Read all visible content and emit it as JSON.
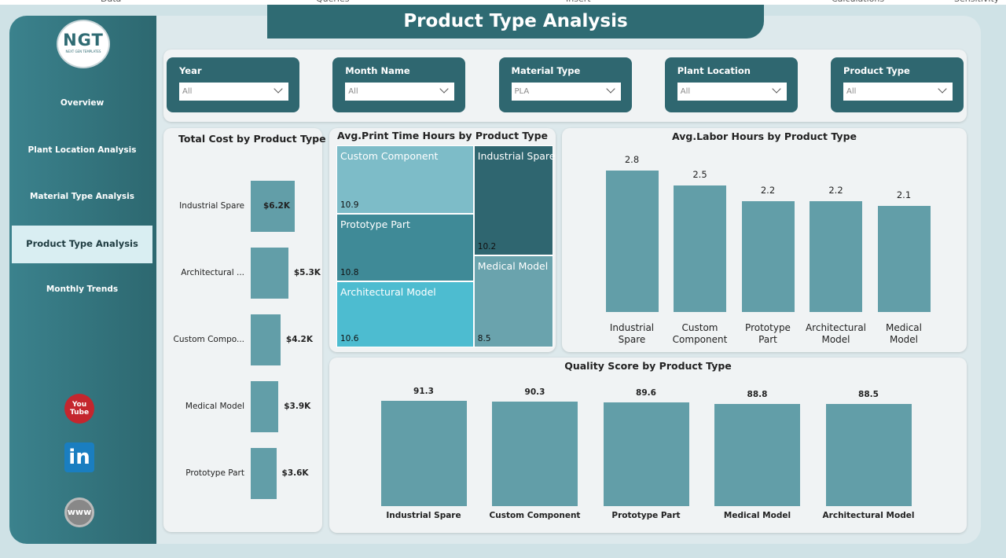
{
  "ribbon": [
    "Data",
    "Queries",
    "Insert",
    "Calculations",
    "Sensitivity"
  ],
  "logo": {
    "title": "NGT",
    "subtitle": "NEXT GEN TEMPLATES"
  },
  "header": {
    "title": "Product Type Analysis"
  },
  "nav": [
    {
      "label": "Overview",
      "active": false
    },
    {
      "label": "Plant Location Analysis",
      "active": false
    },
    {
      "label": "Material Type Analysis",
      "active": false
    },
    {
      "label": "Product Type Analysis",
      "active": true
    },
    {
      "label": "Monthly Trends",
      "active": false
    }
  ],
  "filters": [
    {
      "label": "Year",
      "value": "All"
    },
    {
      "label": "Month Name",
      "value": "All"
    },
    {
      "label": "Material Type",
      "value": "PLA"
    },
    {
      "label": "Plant Location",
      "value": "All"
    },
    {
      "label": "Product Type",
      "value": "All"
    }
  ],
  "social": {
    "youtube": [
      "You",
      "Tube"
    ],
    "linkedin": "in",
    "web": "www"
  },
  "chart_data": [
    {
      "type": "hbar",
      "title": "Total Cost by Product Type",
      "categories": [
        "Industrial Spare",
        "Architectural ...",
        "Custom Compo...",
        "Medical Model",
        "Prototype Part"
      ],
      "values": [
        6200,
        5300,
        4200,
        3900,
        3600
      ],
      "value_labels": [
        "$6.2K",
        "$5.3K",
        "$4.2K",
        "$3.9K",
        "$3.6K"
      ],
      "color": "#629ea8"
    },
    {
      "type": "treemap",
      "title": "Avg.Print Time Hours by Product Type",
      "categories": [
        "Custom Component",
        "Prototype Part",
        "Architectural Model",
        "Industrial Spare",
        "Medical Model"
      ],
      "values": [
        10.9,
        10.8,
        10.6,
        10.2,
        8.5
      ],
      "colors": [
        "#7dbcc8",
        "#3f8a97",
        "#4dbcd0",
        "#2f6670",
        "#6aa3ad"
      ]
    },
    {
      "type": "bar",
      "title": "Avg.Labor Hours by Product Type",
      "categories": [
        "Industrial Spare",
        "Custom Component",
        "Prototype Part",
        "Architectural Model",
        "Medical Model"
      ],
      "values": [
        2.8,
        2.5,
        2.2,
        2.2,
        2.1
      ],
      "color": "#629ea8"
    },
    {
      "type": "bar",
      "title": "Quality Score by Product Type",
      "categories": [
        "Industrial Spare",
        "Custom Component",
        "Prototype Part",
        "Medical Model",
        "Architectural Model"
      ],
      "values": [
        91.3,
        90.3,
        89.6,
        88.8,
        88.5
      ],
      "color": "#629ea8"
    }
  ]
}
